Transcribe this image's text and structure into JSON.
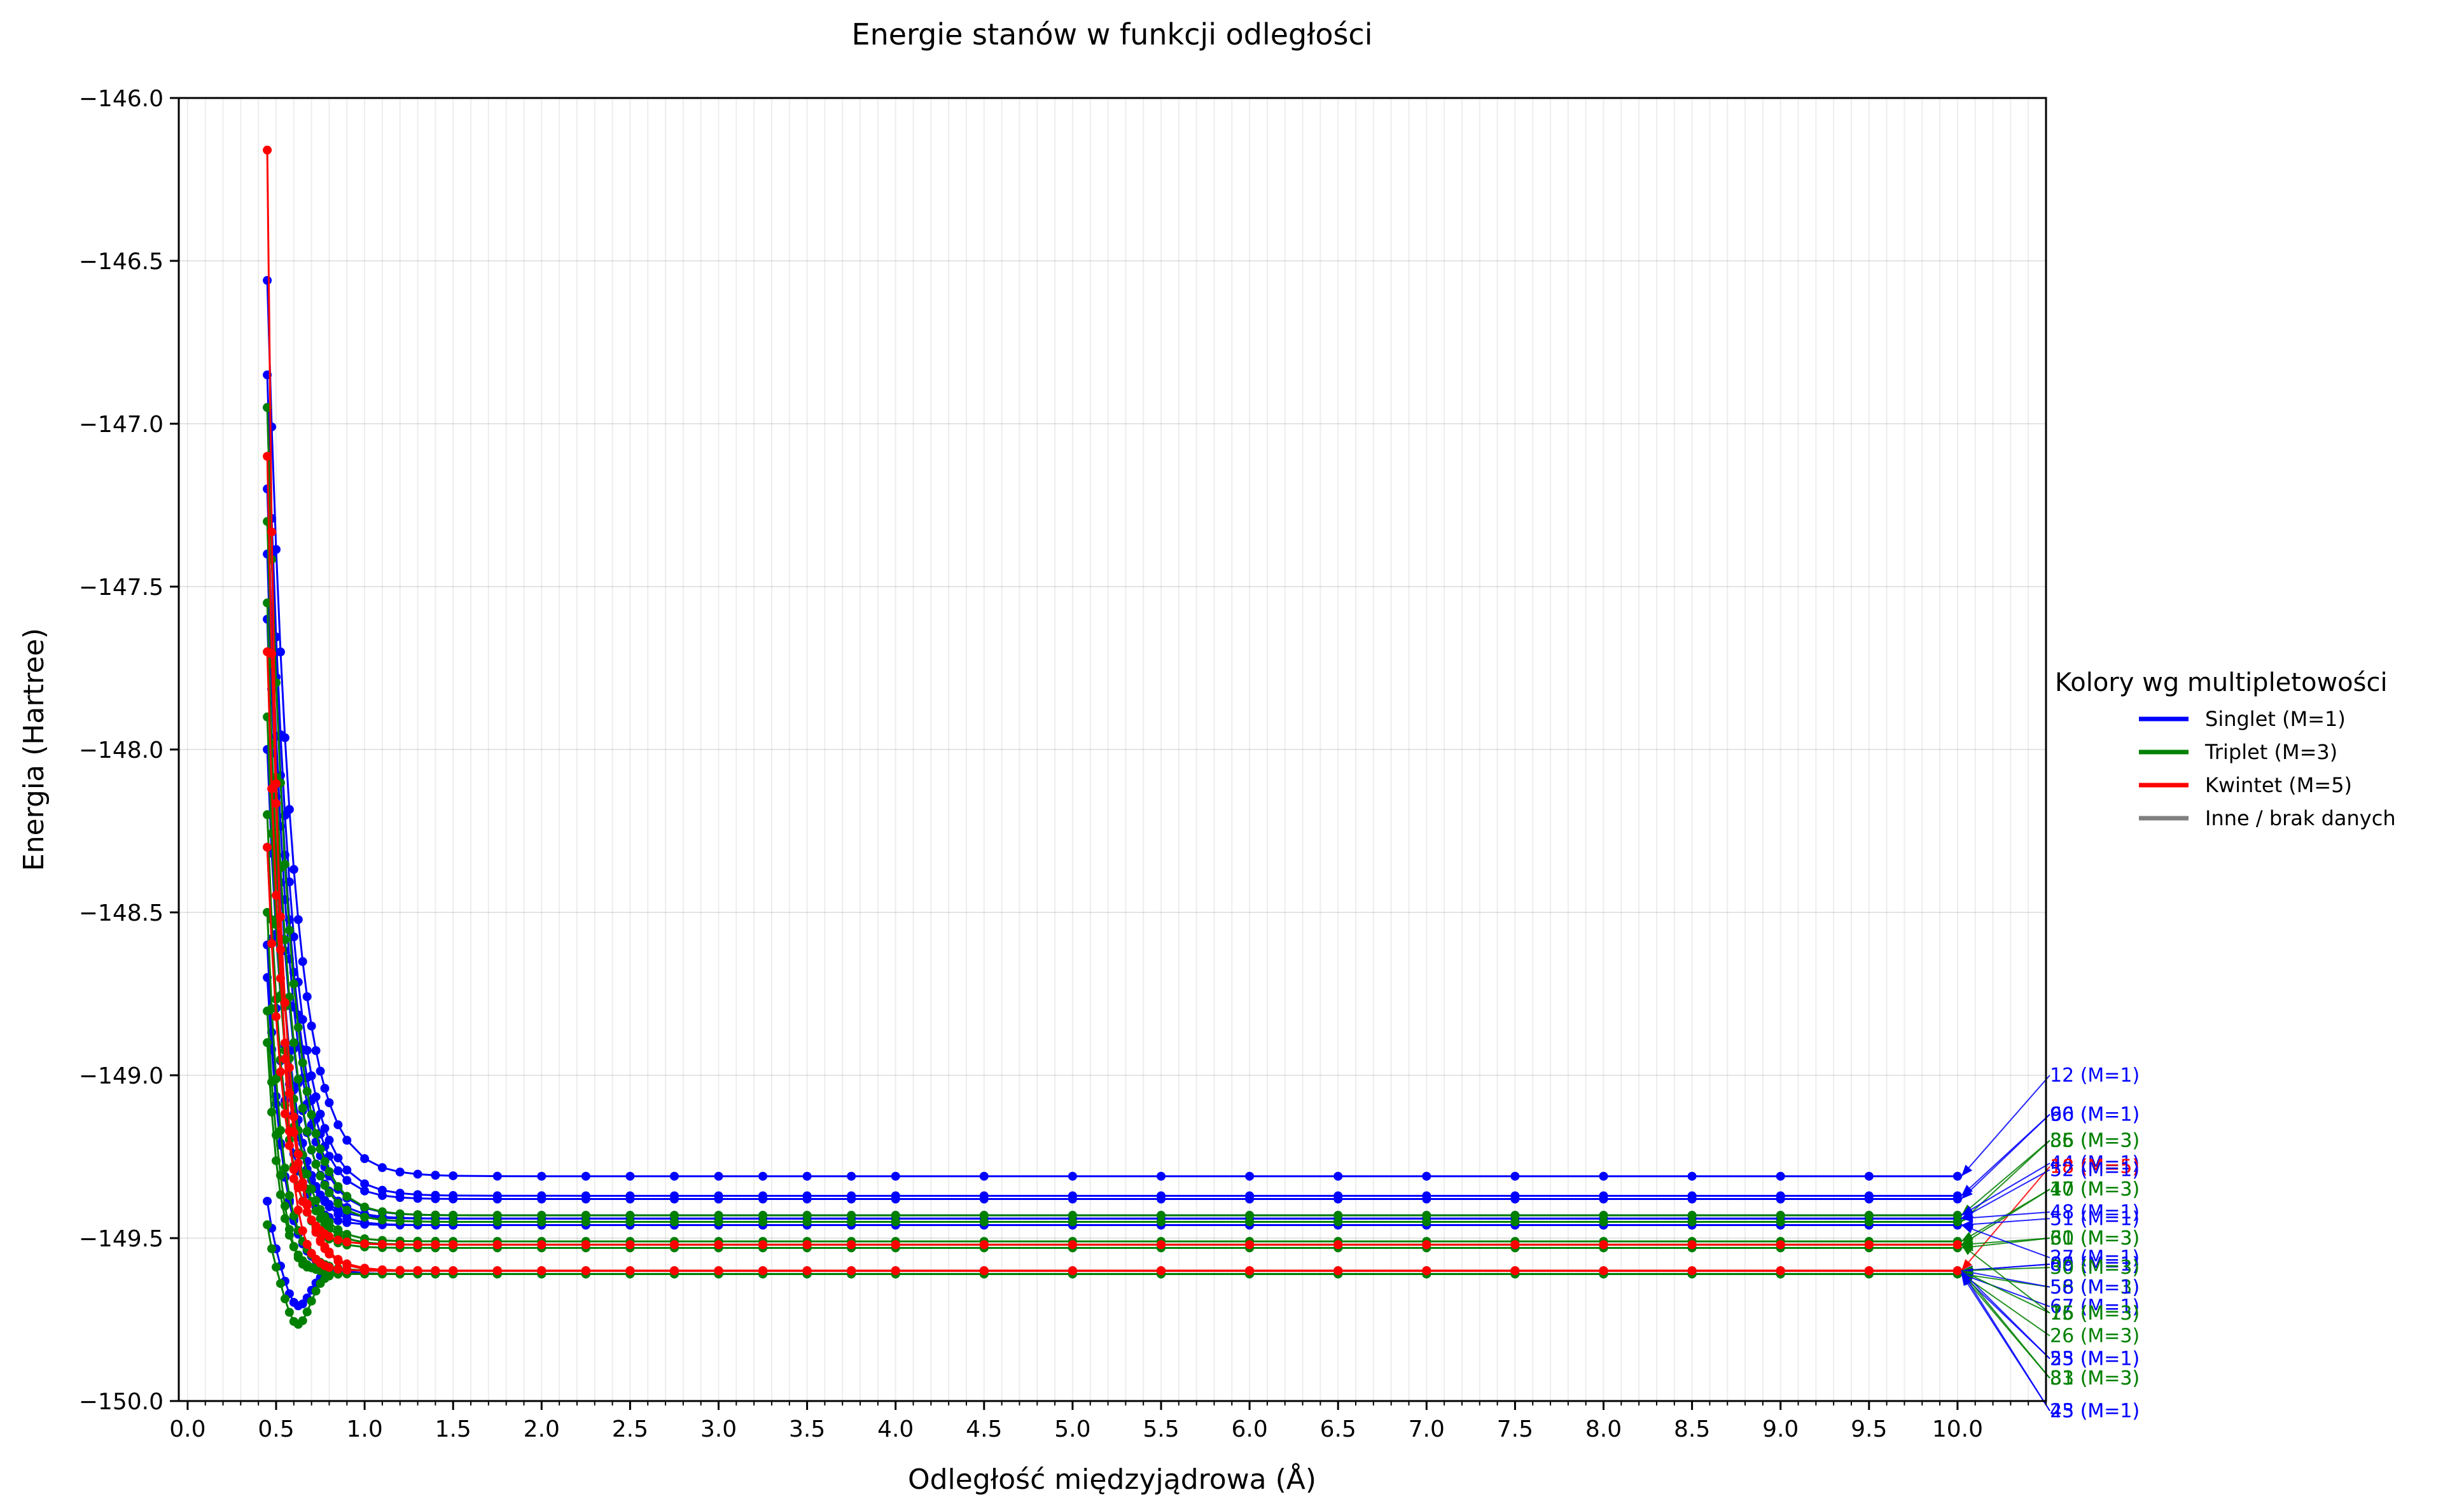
{
  "chart_data": {
    "type": "line",
    "title": "Energie stanów w funkcji odległości",
    "xlabel": "Odległość międzyjądrowa (Å)",
    "ylabel": "Energia (Hartree)",
    "xlim": [
      -0.05,
      10.5
    ],
    "ylim": [
      -150.0,
      -146.0
    ],
    "xticks": [
      0.0,
      0.5,
      1.0,
      1.5,
      2.0,
      2.5,
      3.0,
      3.5,
      4.0,
      4.5,
      5.0,
      5.5,
      6.0,
      6.5,
      7.0,
      7.5,
      8.0,
      8.5,
      9.0,
      9.5,
      10.0
    ],
    "xtick_labels": [
      "0.0",
      "0.5",
      "1.0",
      "1.5",
      "2.0",
      "2.5",
      "3.0",
      "3.5",
      "4.0",
      "4.5",
      "5.0",
      "5.5",
      "6.0",
      "6.5",
      "7.0",
      "7.5",
      "8.0",
      "8.5",
      "9.0",
      "9.5",
      "10.0"
    ],
    "yticks": [
      -146.0,
      -146.5,
      -147.0,
      -147.5,
      -148.0,
      -148.5,
      -149.0,
      -149.5,
      -150.0
    ],
    "ytick_labels": [
      "−146.0",
      "−146.5",
      "−147.0",
      "−147.5",
      "−148.0",
      "−148.5",
      "−149.0",
      "−149.5",
      "−150.0"
    ],
    "grid": true,
    "minor_x_grid_step": 0.1,
    "legend": {
      "title": "Kolory wg multipletowości",
      "placement": "right",
      "entries": [
        {
          "label": "Singlet (M=1)",
          "color": "#0000ff"
        },
        {
          "label": "Triplet (M=3)",
          "color": "#008000"
        },
        {
          "label": "Kwintet (M=5)",
          "color": "#ff0000"
        },
        {
          "label": "Inne / brak danych",
          "color": "#808080"
        }
      ]
    },
    "x": [
      0.45,
      0.475,
      0.5,
      0.525,
      0.55,
      0.575,
      0.6,
      0.625,
      0.65,
      0.675,
      0.7,
      0.725,
      0.75,
      0.775,
      0.8,
      0.85,
      0.9,
      1.0,
      1.1,
      1.2,
      1.3,
      1.4,
      1.5,
      1.75,
      2.0,
      2.25,
      2.5,
      2.75,
      3.0,
      3.25,
      3.5,
      3.75,
      4.0,
      4.5,
      5.0,
      5.5,
      6.0,
      6.5,
      7.0,
      7.5,
      8.0,
      8.5,
      9.0,
      9.5,
      10.0
    ],
    "series": [
      {
        "color": "#0000ff",
        "decay": 0.14,
        "start": -146.56,
        "end": -149.31,
        "dip": 0
      },
      {
        "color": "#0000ff",
        "decay": 0.13,
        "start": -146.85,
        "end": -149.37,
        "dip": 0
      },
      {
        "color": "#0000ff",
        "decay": 0.12,
        "start": -146.95,
        "end": -149.38,
        "dip": 0
      },
      {
        "color": "#0000ff",
        "decay": 0.12,
        "start": -147.2,
        "end": -149.43,
        "dip": 0
      },
      {
        "color": "#0000ff",
        "decay": 0.11,
        "start": -147.4,
        "end": -149.44,
        "dip": 0
      },
      {
        "color": "#0000ff",
        "decay": 0.1,
        "start": -147.6,
        "end": -149.46,
        "dip": 0
      },
      {
        "color": "#0000ff",
        "decay": 0.1,
        "start": -148.0,
        "end": -149.44,
        "dip": 0
      },
      {
        "color": "#0000ff",
        "decay": 0.09,
        "start": -148.3,
        "end": -149.46,
        "dip": 0
      },
      {
        "color": "#0000ff",
        "decay": 0.08,
        "start": -148.6,
        "end": -149.6,
        "dip": 0
      },
      {
        "color": "#0000ff",
        "decay": 0.06,
        "start": -149.38,
        "end": -149.6,
        "dip": 0.12
      },
      {
        "color": "#0000ff",
        "decay": 0.09,
        "start": -148.7,
        "end": -149.61,
        "dip": 0
      },
      {
        "color": "#008000",
        "decay": 0.12,
        "start": -146.95,
        "end": -149.43,
        "dip": 0
      },
      {
        "color": "#008000",
        "decay": 0.11,
        "start": -147.3,
        "end": -149.45,
        "dip": 0
      },
      {
        "color": "#008000",
        "decay": 0.1,
        "start": -147.55,
        "end": -149.51,
        "dip": 0
      },
      {
        "color": "#008000",
        "decay": 0.1,
        "start": -147.9,
        "end": -149.52,
        "dip": 0
      },
      {
        "color": "#008000",
        "decay": 0.09,
        "start": -148.2,
        "end": -149.53,
        "dip": 0
      },
      {
        "color": "#008000",
        "decay": 0.08,
        "start": -148.5,
        "end": -149.6,
        "dip": 0
      },
      {
        "color": "#008000",
        "decay": 0.07,
        "start": -148.9,
        "end": -149.61,
        "dip": 0
      },
      {
        "color": "#008000",
        "decay": 0.05,
        "start": -149.45,
        "end": -149.61,
        "dip": 0.16
      },
      {
        "color": "#008000",
        "decay": 0.08,
        "start": -148.8,
        "end": -149.6,
        "dip": 0.05
      },
      {
        "color": "#ff0000",
        "decay": 0.06,
        "start": -146.16,
        "end": -149.6,
        "dip": 0
      },
      {
        "color": "#ff0000",
        "decay": 0.09,
        "start": -147.1,
        "end": -149.6,
        "dip": 0
      },
      {
        "color": "#ff0000",
        "decay": 0.1,
        "start": -147.7,
        "end": -149.6,
        "dip": 0
      },
      {
        "color": "#ff0000",
        "decay": 0.09,
        "start": -148.3,
        "end": -149.52,
        "dip": 0
      }
    ],
    "annotations": [
      {
        "text": "12 (M=1)",
        "color": "#0000ff",
        "label_y": -149.0,
        "target_y": -149.31
      },
      {
        "text": "66 (M=1)",
        "color": "#0000ff",
        "label_y": -149.12,
        "target_y": -149.37
      },
      {
        "text": "90 (M=1)",
        "color": "#0000ff",
        "label_y": -149.12,
        "target_y": -149.38
      },
      {
        "text": "35 (M=3)",
        "color": "#008000",
        "label_y": -149.2,
        "target_y": -149.43
      },
      {
        "text": "86 (M=3)",
        "color": "#008000",
        "label_y": -149.2,
        "target_y": -149.45
      },
      {
        "text": "44 (M=1)",
        "color": "#0000ff",
        "label_y": -149.27,
        "target_y": -149.43
      },
      {
        "text": "18 (M=5)",
        "color": "#ff0000",
        "label_y": -149.28,
        "target_y": -149.6
      },
      {
        "text": "52 (M=1)",
        "color": "#0000ff",
        "label_y": -149.29,
        "target_y": -149.44
      },
      {
        "text": "10 (M=3)",
        "color": "#008000",
        "label_y": -149.35,
        "target_y": -149.51
      },
      {
        "text": "47 (M=3)",
        "color": "#008000",
        "label_y": -149.35,
        "target_y": -149.52
      },
      {
        "text": "48 (M=1)",
        "color": "#0000ff",
        "label_y": -149.42,
        "target_y": -149.44
      },
      {
        "text": "51 (M=1)",
        "color": "#0000ff",
        "label_y": -149.44,
        "target_y": -149.46
      },
      {
        "text": "60 (M=3)",
        "color": "#008000",
        "label_y": -149.5,
        "target_y": -149.52
      },
      {
        "text": "31 (M=3)",
        "color": "#008000",
        "label_y": -149.5,
        "target_y": -149.53
      },
      {
        "text": "27 (M=1)",
        "color": "#0000ff",
        "label_y": -149.56,
        "target_y": -149.46
      },
      {
        "text": "06 (M=1)",
        "color": "#0000ff",
        "label_y": -149.58,
        "target_y": -149.6
      },
      {
        "text": "89 (M=1)",
        "color": "#0000ff",
        "label_y": -149.58,
        "target_y": -149.6
      },
      {
        "text": "30 (M=3)",
        "color": "#008000",
        "label_y": -149.59,
        "target_y": -149.6
      },
      {
        "text": "56 (M=3)",
        "color": "#008000",
        "label_y": -149.65,
        "target_y": -149.61
      },
      {
        "text": "58 (M=1)",
        "color": "#0000ff",
        "label_y": -149.65,
        "target_y": -149.6
      },
      {
        "text": "67 (M=1)",
        "color": "#0000ff",
        "label_y": -149.71,
        "target_y": -149.61
      },
      {
        "text": "76 (M=3)",
        "color": "#008000",
        "label_y": -149.73,
        "target_y": -149.6
      },
      {
        "text": "15 (M=3)",
        "color": "#008000",
        "label_y": -149.73,
        "target_y": -149.52
      },
      {
        "text": "26 (M=3)",
        "color": "#008000",
        "label_y": -149.8,
        "target_y": -149.61
      },
      {
        "text": "23 (M=1)",
        "color": "#0000ff",
        "label_y": -149.87,
        "target_y": -149.61
      },
      {
        "text": "55 (M=1)",
        "color": "#0000ff",
        "label_y": -149.87,
        "target_y": -149.6
      },
      {
        "text": "81 (M=3)",
        "color": "#008000",
        "label_y": -149.93,
        "target_y": -149.6
      },
      {
        "text": "33 (M=3)",
        "color": "#008000",
        "label_y": -149.93,
        "target_y": -149.61
      },
      {
        "text": "25 (M=1)",
        "color": "#0000ff",
        "label_y": -150.03,
        "target_y": -149.61
      },
      {
        "text": "43 (M=1)",
        "color": "#0000ff",
        "label_y": -150.03,
        "target_y": -149.6
      }
    ]
  }
}
